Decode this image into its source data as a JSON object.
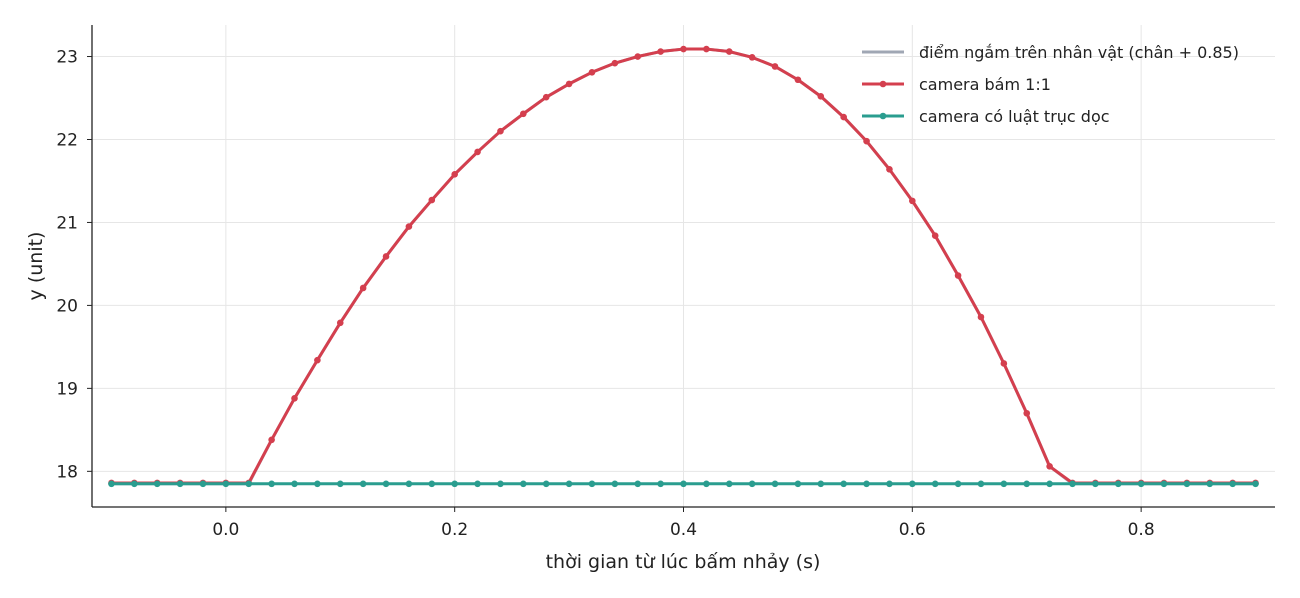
{
  "chart_data": {
    "type": "line",
    "title": "",
    "xlabel": "thời gian từ lúc bấm nhảy (s)",
    "ylabel": "y (unit)",
    "xlim": [
      -0.117,
      0.917
    ],
    "ylim": [
      17.57,
      23.38
    ],
    "xticks": [
      "0.0",
      "0.2",
      "0.4",
      "0.6",
      "0.8"
    ],
    "yticks": [
      "18",
      "19",
      "20",
      "21",
      "22",
      "23"
    ],
    "grid": true,
    "legend_position": "top-right",
    "x": [
      -0.1,
      -0.08,
      -0.06,
      -0.04,
      -0.02,
      0.0,
      0.02,
      0.04,
      0.06,
      0.08,
      0.1,
      0.12,
      0.14,
      0.16,
      0.18,
      0.2,
      0.22,
      0.24,
      0.26,
      0.28,
      0.3,
      0.32,
      0.34,
      0.36,
      0.38,
      0.4,
      0.42,
      0.44,
      0.46,
      0.48,
      0.5,
      0.52,
      0.54,
      0.56,
      0.58,
      0.6,
      0.62,
      0.64,
      0.66,
      0.68,
      0.7,
      0.72,
      0.74,
      0.76,
      0.78,
      0.8,
      0.82,
      0.84,
      0.86,
      0.88,
      0.9
    ],
    "series": [
      {
        "name": "điểm ngắm trên nhân vật (chân + 0.85)",
        "color": "#a0a7b4",
        "marker": false,
        "values": [
          17.85,
          17.85,
          17.85,
          17.85,
          17.85,
          17.85,
          17.85,
          18.38,
          18.88,
          19.34,
          19.79,
          20.21,
          20.59,
          20.95,
          21.27,
          21.58,
          21.85,
          22.1,
          22.31,
          22.51,
          22.67,
          22.81,
          22.92,
          23.0,
          23.06,
          23.09,
          23.09,
          23.06,
          22.99,
          22.88,
          22.72,
          22.52,
          22.27,
          21.98,
          21.64,
          21.26,
          20.84,
          20.36,
          19.86,
          19.3,
          18.7,
          18.06,
          17.85,
          17.85,
          17.85,
          17.85,
          17.85,
          17.85,
          17.85,
          17.85,
          17.85
        ]
      },
      {
        "name": "camera bám 1:1",
        "color": "#d43f4e",
        "marker": true,
        "values": [
          17.86,
          17.86,
          17.86,
          17.86,
          17.86,
          17.86,
          17.86,
          18.38,
          18.88,
          19.34,
          19.79,
          20.21,
          20.59,
          20.95,
          21.27,
          21.58,
          21.85,
          22.1,
          22.31,
          22.51,
          22.67,
          22.81,
          22.92,
          23.0,
          23.06,
          23.09,
          23.09,
          23.06,
          22.99,
          22.88,
          22.72,
          22.52,
          22.27,
          21.98,
          21.64,
          21.26,
          20.84,
          20.36,
          19.86,
          19.3,
          18.7,
          18.06,
          17.86,
          17.86,
          17.86,
          17.86,
          17.86,
          17.86,
          17.86,
          17.86,
          17.86
        ]
      },
      {
        "name": "camera có luật trục dọc",
        "color": "#2a9d8f",
        "marker": true,
        "values": [
          17.85,
          17.85,
          17.85,
          17.85,
          17.85,
          17.85,
          17.85,
          17.85,
          17.85,
          17.85,
          17.85,
          17.85,
          17.85,
          17.85,
          17.85,
          17.85,
          17.85,
          17.85,
          17.85,
          17.85,
          17.85,
          17.85,
          17.85,
          17.85,
          17.85,
          17.85,
          17.85,
          17.85,
          17.85,
          17.85,
          17.85,
          17.85,
          17.85,
          17.85,
          17.85,
          17.85,
          17.85,
          17.85,
          17.85,
          17.85,
          17.85,
          17.85,
          17.85,
          17.85,
          17.85,
          17.85,
          17.85,
          17.85,
          17.85,
          17.85,
          17.85
        ]
      }
    ]
  }
}
